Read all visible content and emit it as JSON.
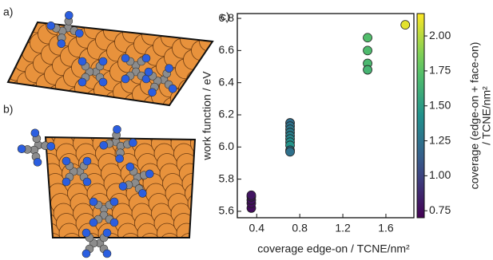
{
  "panel_labels": [
    "a)",
    "b)"
  ],
  "chart_data": {
    "type": "scatter",
    "panel_label": "c)",
    "xlabel": "coverage edge-on / TCNE/nm²",
    "ylabel": "work function / eV",
    "x": [
      0.35,
      0.35,
      0.35,
      0.35,
      0.35,
      0.71,
      0.71,
      0.71,
      0.71,
      0.71,
      0.71,
      0.71,
      0.71,
      0.71,
      0.71,
      1.43,
      1.43,
      1.43,
      1.43,
      1.78
    ],
    "values": [
      5.62,
      5.65,
      5.67,
      5.69,
      5.7,
      6.15,
      6.13,
      6.11,
      6.09,
      6.07,
      6.05,
      6.03,
      6.01,
      5.98,
      5.97,
      6.68,
      6.6,
      6.52,
      6.48,
      6.76
    ],
    "c": [
      0.75,
      0.76,
      0.77,
      0.78,
      0.79,
      1.22,
      1.25,
      1.28,
      1.3,
      1.33,
      1.36,
      1.4,
      1.45,
      1.27,
      1.24,
      1.72,
      1.7,
      1.68,
      1.66,
      2.1
    ],
    "xlim": [
      0.22,
      1.86
    ],
    "xticks": [
      0.4,
      0.8,
      1.2,
      1.6
    ],
    "ylim": [
      5.56,
      6.83
    ],
    "yticks": [
      5.6,
      5.8,
      {
        "value": 6,
        "label": "6.0"
      },
      6.2,
      6.4,
      6.6,
      6.8
    ],
    "colormap": "viridis",
    "clim": [
      0.7,
      2.16
    ],
    "cticks": [
      0.75,
      {
        "value": 1,
        "label": "1.00"
      },
      1.25,
      {
        "value": 1.5,
        "label": "1.50"
      },
      1.75,
      {
        "value": 2,
        "label": "2.00"
      }
    ],
    "clabel": [
      "coverage (edge-on + face-on)",
      "/ TCNE/nm²"
    ]
  }
}
